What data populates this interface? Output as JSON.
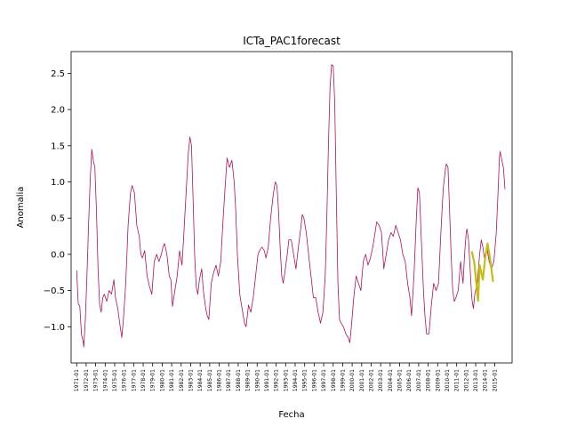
{
  "chart_data": {
    "type": "line",
    "title": "ICTa_PAC1forecast",
    "xlabel": "Fecha",
    "ylabel": "Anomalia",
    "ylim": [
      -1.5,
      2.8
    ],
    "y_ticks": [
      -1.0,
      -0.5,
      0.0,
      0.5,
      1.0,
      1.5,
      2.0,
      2.5
    ],
    "y_tick_labels": [
      "−1.0",
      "−0.5",
      "0.0",
      "0.5",
      "1.0",
      "1.5",
      "2.0",
      "2.5"
    ],
    "x_range": [
      "1970-06",
      "2016-11"
    ],
    "x_tick_labels": [
      "1971-01",
      "1972-01",
      "1973-01",
      "1974-01",
      "1975-01",
      "1976-01",
      "1977-01",
      "1978-01",
      "1979-01",
      "1980-01",
      "1981-01",
      "1982-01",
      "1983-01",
      "1984-01",
      "1985-01",
      "1986-01",
      "1987-01",
      "1988-01",
      "1989-01",
      "1990-01",
      "1991-01",
      "1992-01",
      "1993-01",
      "1994-01",
      "1995-01",
      "1996-01",
      "1997-01",
      "1998-01",
      "1999-01",
      "2000-01",
      "2001-01",
      "2002-01",
      "2003-01",
      "2004-01",
      "2005-01",
      "2006-01",
      "2007-01",
      "2008-01",
      "2009-01",
      "2010-01",
      "2011-01",
      "2012-01",
      "2013-01",
      "2014-01",
      "2015-01"
    ],
    "grid": false,
    "legend": "none",
    "series": [
      {
        "color": "#b0105a",
        "width": 0.8,
        "points": [
          [
            "1971-01",
            -0.22
          ],
          [
            "1971-03",
            -0.68
          ],
          [
            "1971-05",
            -0.72
          ],
          [
            "1971-07",
            -1.1
          ],
          [
            "1971-09",
            -1.2
          ],
          [
            "1971-10",
            -1.28
          ],
          [
            "1971-12",
            -0.9
          ],
          [
            "1972-02",
            -0.3
          ],
          [
            "1972-04",
            0.4
          ],
          [
            "1972-06",
            1.0
          ],
          [
            "1972-08",
            1.45
          ],
          [
            "1972-10",
            1.3
          ],
          [
            "1972-12",
            1.2
          ],
          [
            "1973-02",
            0.6
          ],
          [
            "1973-04",
            -0.2
          ],
          [
            "1973-06",
            -0.7
          ],
          [
            "1973-08",
            -0.8
          ],
          [
            "1973-10",
            -0.6
          ],
          [
            "1973-12",
            -0.55
          ],
          [
            "1974-03",
            -0.65
          ],
          [
            "1974-06",
            -0.5
          ],
          [
            "1974-09",
            -0.55
          ],
          [
            "1974-12",
            -0.35
          ],
          [
            "1975-02",
            -0.6
          ],
          [
            "1975-05",
            -0.75
          ],
          [
            "1975-08",
            -1.0
          ],
          [
            "1975-10",
            -1.15
          ],
          [
            "1975-12",
            -0.9
          ],
          [
            "1976-03",
            -0.4
          ],
          [
            "1976-06",
            0.4
          ],
          [
            "1976-09",
            0.85
          ],
          [
            "1976-11",
            0.95
          ],
          [
            "1977-02",
            0.85
          ],
          [
            "1977-05",
            0.4
          ],
          [
            "1977-08",
            0.25
          ],
          [
            "1977-10",
            0.0
          ],
          [
            "1977-12",
            -0.05
          ],
          [
            "1978-03",
            0.05
          ],
          [
            "1978-06",
            -0.3
          ],
          [
            "1978-09",
            -0.45
          ],
          [
            "1978-12",
            -0.55
          ],
          [
            "1979-03",
            -0.1
          ],
          [
            "1979-06",
            0.0
          ],
          [
            "1979-09",
            -0.1
          ],
          [
            "1979-12",
            0.0
          ],
          [
            "1980-02",
            0.1
          ],
          [
            "1980-04",
            0.15
          ],
          [
            "1980-07",
            0.0
          ],
          [
            "1980-10",
            -0.3
          ],
          [
            "1980-12",
            -0.35
          ],
          [
            "1981-02",
            -0.72
          ],
          [
            "1981-05",
            -0.5
          ],
          [
            "1981-08",
            -0.3
          ],
          [
            "1981-11",
            0.05
          ],
          [
            "1982-02",
            -0.15
          ],
          [
            "1982-04",
            0.2
          ],
          [
            "1982-07",
            0.8
          ],
          [
            "1982-10",
            1.4
          ],
          [
            "1982-12",
            1.62
          ],
          [
            "1983-02",
            1.5
          ],
          [
            "1983-04",
            0.8
          ],
          [
            "1983-06",
            0.0
          ],
          [
            "1983-08",
            -0.45
          ],
          [
            "1983-10",
            -0.55
          ],
          [
            "1983-12",
            -0.35
          ],
          [
            "1984-03",
            -0.2
          ],
          [
            "1984-05",
            -0.5
          ],
          [
            "1984-08",
            -0.75
          ],
          [
            "1984-10",
            -0.85
          ],
          [
            "1984-12",
            -0.9
          ],
          [
            "1985-03",
            -0.4
          ],
          [
            "1985-06",
            -0.25
          ],
          [
            "1985-09",
            -0.15
          ],
          [
            "1985-12",
            -0.3
          ],
          [
            "1986-03",
            -0.1
          ],
          [
            "1986-06",
            0.5
          ],
          [
            "1986-09",
            1.0
          ],
          [
            "1986-11",
            1.33
          ],
          [
            "1987-02",
            1.2
          ],
          [
            "1987-05",
            1.3
          ],
          [
            "1987-08",
            1.0
          ],
          [
            "1987-10",
            0.6
          ],
          [
            "1987-12",
            0.0
          ],
          [
            "1988-03",
            -0.55
          ],
          [
            "1988-06",
            -0.75
          ],
          [
            "1988-09",
            -0.95
          ],
          [
            "1988-11",
            -1.0
          ],
          [
            "1989-02",
            -0.7
          ],
          [
            "1989-05",
            -0.8
          ],
          [
            "1989-08",
            -0.6
          ],
          [
            "1989-11",
            -0.3
          ],
          [
            "1990-02",
            0.0
          ],
          [
            "1990-04",
            0.05
          ],
          [
            "1990-07",
            0.1
          ],
          [
            "1990-10",
            0.05
          ],
          [
            "1990-12",
            -0.05
          ],
          [
            "1991-03",
            0.1
          ],
          [
            "1991-06",
            0.5
          ],
          [
            "1991-09",
            0.8
          ],
          [
            "1991-11",
            0.95
          ],
          [
            "1991-12",
            1.0
          ],
          [
            "1992-02",
            0.95
          ],
          [
            "1992-04",
            0.6
          ],
          [
            "1992-06",
            0.1
          ],
          [
            "1992-08",
            -0.3
          ],
          [
            "1992-10",
            -0.4
          ],
          [
            "1992-12",
            -0.25
          ],
          [
            "1993-03",
            0.0
          ],
          [
            "1993-05",
            0.2
          ],
          [
            "1993-08",
            0.2
          ],
          [
            "1993-11",
            0.0
          ],
          [
            "1994-02",
            -0.2
          ],
          [
            "1994-05",
            0.1
          ],
          [
            "1994-08",
            0.35
          ],
          [
            "1994-10",
            0.55
          ],
          [
            "1994-12",
            0.5
          ],
          [
            "1995-03",
            0.3
          ],
          [
            "1995-06",
            0.0
          ],
          [
            "1995-09",
            -0.3
          ],
          [
            "1995-12",
            -0.6
          ],
          [
            "1996-03",
            -0.6
          ],
          [
            "1996-06",
            -0.8
          ],
          [
            "1996-09",
            -0.95
          ],
          [
            "1996-12",
            -0.8
          ],
          [
            "1997-03",
            -0.3
          ],
          [
            "1997-05",
            0.5
          ],
          [
            "1997-07",
            1.5
          ],
          [
            "1997-09",
            2.3
          ],
          [
            "1997-11",
            2.62
          ],
          [
            "1998-01",
            2.6
          ],
          [
            "1998-03",
            2.1
          ],
          [
            "1998-05",
            0.8
          ],
          [
            "1998-07",
            -0.4
          ],
          [
            "1998-09",
            -0.9
          ],
          [
            "1998-11",
            -0.95
          ],
          [
            "1999-02",
            -1.0
          ],
          [
            "1999-05",
            -1.1
          ],
          [
            "1999-08",
            -1.15
          ],
          [
            "1999-10",
            -1.22
          ],
          [
            "1999-12",
            -1.0
          ],
          [
            "2000-03",
            -0.6
          ],
          [
            "2000-06",
            -0.3
          ],
          [
            "2000-09",
            -0.4
          ],
          [
            "2000-12",
            -0.5
          ],
          [
            "2001-03",
            -0.1
          ],
          [
            "2001-06",
            0.0
          ],
          [
            "2001-09",
            -0.15
          ],
          [
            "2001-12",
            -0.05
          ],
          [
            "2002-03",
            0.1
          ],
          [
            "2002-06",
            0.3
          ],
          [
            "2002-08",
            0.45
          ],
          [
            "2002-11",
            0.4
          ],
          [
            "2003-02",
            0.3
          ],
          [
            "2003-05",
            -0.2
          ],
          [
            "2003-08",
            0.0
          ],
          [
            "2003-11",
            0.2
          ],
          [
            "2004-02",
            0.3
          ],
          [
            "2004-05",
            0.25
          ],
          [
            "2004-08",
            0.4
          ],
          [
            "2004-11",
            0.3
          ],
          [
            "2005-02",
            0.2
          ],
          [
            "2005-05",
            0.0
          ],
          [
            "2005-08",
            -0.1
          ],
          [
            "2005-11",
            -0.4
          ],
          [
            "2006-02",
            -0.6
          ],
          [
            "2006-04",
            -0.85
          ],
          [
            "2006-07",
            -0.3
          ],
          [
            "2006-10",
            0.5
          ],
          [
            "2006-12",
            0.92
          ],
          [
            "2007-02",
            0.85
          ],
          [
            "2007-04",
            0.3
          ],
          [
            "2007-07",
            -0.5
          ],
          [
            "2007-09",
            -0.85
          ],
          [
            "2007-11",
            -1.1
          ],
          [
            "2008-02",
            -1.1
          ],
          [
            "2008-05",
            -0.7
          ],
          [
            "2008-08",
            -0.4
          ],
          [
            "2008-11",
            -0.5
          ],
          [
            "2009-02",
            -0.4
          ],
          [
            "2009-05",
            0.3
          ],
          [
            "2009-08",
            0.9
          ],
          [
            "2009-11",
            1.2
          ],
          [
            "2009-12",
            1.25
          ],
          [
            "2010-02",
            1.2
          ],
          [
            "2010-04",
            0.6
          ],
          [
            "2010-06",
            0.0
          ],
          [
            "2010-08",
            -0.5
          ],
          [
            "2010-10",
            -0.65
          ],
          [
            "2010-12",
            -0.6
          ],
          [
            "2011-03",
            -0.5
          ],
          [
            "2011-06",
            -0.1
          ],
          [
            "2011-09",
            -0.4
          ],
          [
            "2011-11",
            0.0
          ],
          [
            "2012-01",
            0.3
          ],
          [
            "2012-02",
            0.35
          ],
          [
            "2012-04",
            0.2
          ],
          [
            "2012-06",
            -0.2
          ],
          [
            "2012-08",
            -0.6
          ],
          [
            "2012-10",
            -0.75
          ],
          [
            "2012-12",
            -0.55
          ],
          [
            "2013-03",
            -0.4
          ],
          [
            "2013-06",
            0.0
          ],
          [
            "2013-08",
            0.2
          ],
          [
            "2013-10",
            0.1
          ],
          [
            "2013-12",
            -0.05
          ],
          [
            "2014-03",
            0.1
          ],
          [
            "2014-06",
            -0.1
          ],
          [
            "2014-09",
            -0.2
          ],
          [
            "2014-12",
            -0.1
          ],
          [
            "2015-03",
            0.3
          ],
          [
            "2015-05",
            0.8
          ],
          [
            "2015-07",
            1.35
          ],
          [
            "2015-08",
            1.42
          ],
          [
            "2015-10",
            1.3
          ],
          [
            "2015-12",
            1.2
          ],
          [
            "2016-02",
            0.9
          ]
        ]
      },
      {
        "color": "#c2be12",
        "width": 2.2,
        "points": [
          [
            "2012-08",
            0.04
          ],
          [
            "2012-11",
            -0.1
          ],
          [
            "2013-01",
            -0.3
          ],
          [
            "2013-04",
            -0.64
          ],
          [
            "2013-06",
            -0.15
          ],
          [
            "2013-10",
            -0.35
          ],
          [
            "2014-01",
            -0.05
          ],
          [
            "2014-04",
            0.15
          ],
          [
            "2014-07",
            -0.05
          ],
          [
            "2014-11",
            -0.38
          ]
        ]
      }
    ]
  }
}
